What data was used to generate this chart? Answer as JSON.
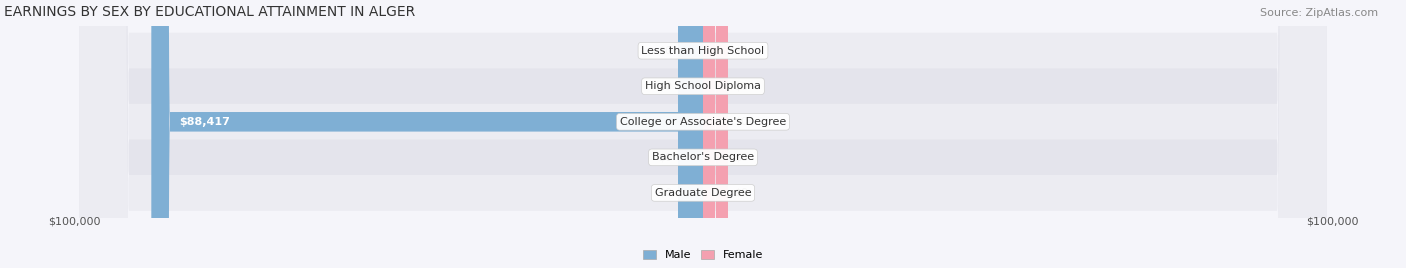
{
  "title": "EARNINGS BY SEX BY EDUCATIONAL ATTAINMENT IN ALGER",
  "source": "Source: ZipAtlas.com",
  "categories": [
    "Less than High School",
    "High School Diploma",
    "College or Associate's Degree",
    "Bachelor's Degree",
    "Graduate Degree"
  ],
  "male_values": [
    0,
    0,
    88417,
    0,
    0
  ],
  "female_values": [
    0,
    0,
    0,
    0,
    0
  ],
  "male_color": "#7fafd4",
  "female_color": "#f4a0b0",
  "bar_bg_color": "#e8e8ee",
  "row_bg_even": "#f0f0f5",
  "row_bg_odd": "#e8e8ee",
  "xlim": 100000,
  "xlabel_left": "$100,000",
  "xlabel_right": "$100,000",
  "title_fontsize": 10,
  "source_fontsize": 8,
  "tick_fontsize": 8,
  "label_fontsize": 8,
  "bar_height": 0.55,
  "background_color": "#f5f5fa"
}
